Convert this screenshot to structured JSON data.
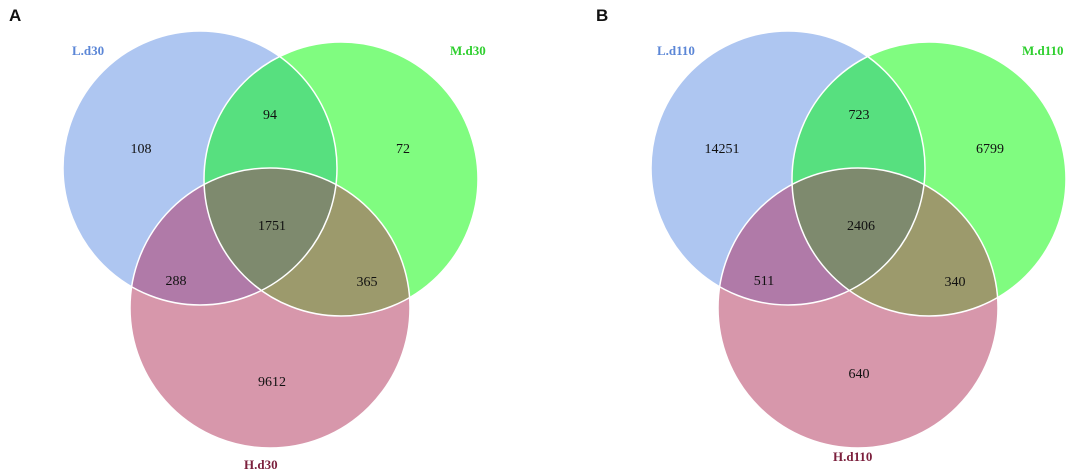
{
  "panels": [
    {
      "letter": "A",
      "sets": {
        "L": {
          "label": "L.d30",
          "color": "#aec6f1",
          "label_color": "#5b86d6"
        },
        "M": {
          "label": "M.d30",
          "color": "#80fc80",
          "label_color": "#2fcf2f"
        },
        "H": {
          "label": "H.d30",
          "color": "#d797ab",
          "label_color": "#7b1f3c"
        }
      },
      "counts": {
        "L_only": "108",
        "M_only": "72",
        "H_only": "9612",
        "LM": "94",
        "LH": "288",
        "MH": "365",
        "LMH": "1751"
      }
    },
    {
      "letter": "B",
      "sets": {
        "L": {
          "label": "L.d110",
          "color": "#aec6f1",
          "label_color": "#5b86d6"
        },
        "M": {
          "label": "M.d110",
          "color": "#80fc80",
          "label_color": "#2fcf2f"
        },
        "H": {
          "label": "H.d110",
          "color": "#d797ab",
          "label_color": "#7b1f3c"
        }
      },
      "counts": {
        "L_only": "14251",
        "M_only": "6799",
        "H_only": "640",
        "LM": "723",
        "LH": "511",
        "MH": "340",
        "LMH": "2406"
      }
    }
  ],
  "region_colors": {
    "LM": "#57e07f",
    "LH": "#b07aa8",
    "MH": "#9c9a6c",
    "LMH": "#7e8a6e"
  }
}
